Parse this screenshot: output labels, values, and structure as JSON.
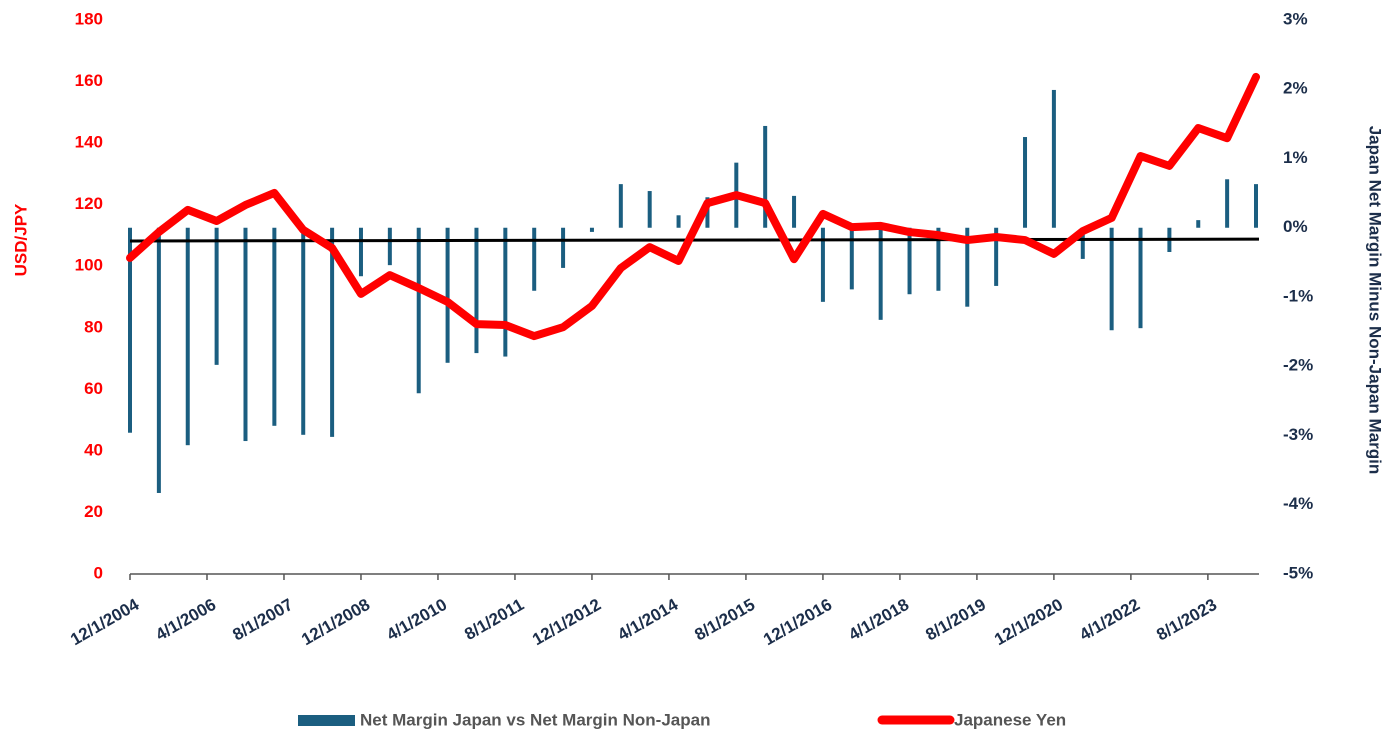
{
  "chart_data": {
    "type": "bar",
    "x": [
      "12/1/2004",
      "6/1/2005",
      "12/1/2005",
      "6/1/2006",
      "12/1/2006",
      "6/1/2007",
      "12/1/2007",
      "6/1/2008",
      "12/1/2008",
      "6/1/2009",
      "12/1/2009",
      "6/1/2010",
      "12/1/2010",
      "6/1/2011",
      "12/1/2011",
      "6/1/2012",
      "12/1/2012",
      "6/1/2013",
      "12/1/2013",
      "6/1/2014",
      "12/1/2014",
      "6/1/2015",
      "12/1/2015",
      "6/1/2016",
      "12/1/2016",
      "6/1/2017",
      "12/1/2017",
      "6/1/2018",
      "12/1/2018",
      "6/1/2019",
      "12/1/2019",
      "6/1/2020",
      "12/1/2020",
      "6/1/2021",
      "12/1/2021",
      "6/1/2022",
      "12/1/2022",
      "6/1/2023",
      "12/1/2023",
      "6/1/2024"
    ],
    "xlim": [
      "12/1/2004",
      "6/1/2024"
    ],
    "xticks": [
      "12/1/2004",
      "4/1/2006",
      "8/1/2007",
      "12/1/2008",
      "4/1/2010",
      "8/1/2011",
      "12/1/2012",
      "4/1/2014",
      "8/1/2015",
      "12/1/2016",
      "4/1/2018",
      "8/1/2019",
      "12/1/2020",
      "4/1/2022",
      "8/1/2023"
    ],
    "ylabel": "USD/JPY",
    "y2label": "Japan Net Margin Minus Non-Japan Margin",
    "ylim": [
      0,
      180
    ],
    "yticks": [
      0,
      20,
      40,
      60,
      80,
      100,
      120,
      140,
      160,
      180
    ],
    "y2lim": [
      -5,
      3
    ],
    "y2ticks": [
      {
        "value": -5,
        "label": "-5%"
      },
      {
        "value": -4,
        "label": "-4%"
      },
      {
        "value": -3,
        "label": "-3%"
      },
      {
        "value": -2,
        "label": "-2%"
      },
      {
        "value": -1,
        "label": "-1%"
      },
      {
        "value": 0,
        "label": "0%"
      },
      {
        "value": 1,
        "label": "1%"
      },
      {
        "value": 2,
        "label": "2%"
      },
      {
        "value": 3,
        "label": "3%"
      }
    ],
    "series": [
      {
        "name": "Net Margin Japan vs Net Margin Non-Japan",
        "type": "bar",
        "axis": "y2",
        "color": "#1b5e80",
        "values": [
          -2.96,
          -3.83,
          -3.14,
          -1.98,
          -3.08,
          -2.86,
          -2.99,
          -3.02,
          -0.7,
          -0.54,
          -2.39,
          -1.95,
          -1.81,
          -1.86,
          -0.91,
          -0.58,
          -0.06,
          0.63,
          0.53,
          0.18,
          0.44,
          0.94,
          1.47,
          0.46,
          -1.07,
          -0.89,
          -1.33,
          -0.96,
          -0.91,
          -1.14,
          -0.84,
          1.31,
          1.99,
          -0.45,
          -1.48,
          -1.45,
          -0.35,
          0.11,
          0.7,
          0.63
        ]
      },
      {
        "name": "Japanese Yen",
        "type": "line",
        "color": "#ff0000",
        "values": [
          102.7,
          111.1,
          118.3,
          114.7,
          119.9,
          123.8,
          111.8,
          105.9,
          91.0,
          97.1,
          92.9,
          88.4,
          81.2,
          80.9,
          77.3,
          80.2,
          87.1,
          99.4,
          106.2,
          101.7,
          120.5,
          123.1,
          120.5,
          102.3,
          117.0,
          112.7,
          113.1,
          111.1,
          110.1,
          108.5,
          109.5,
          108.5,
          104.0,
          111.4,
          115.7,
          135.8,
          132.6,
          144.9,
          141.6,
          161.5
        ]
      }
    ],
    "trend_line": {
      "color": "#000000",
      "values": [
        108.2,
        108.8
      ]
    }
  }
}
